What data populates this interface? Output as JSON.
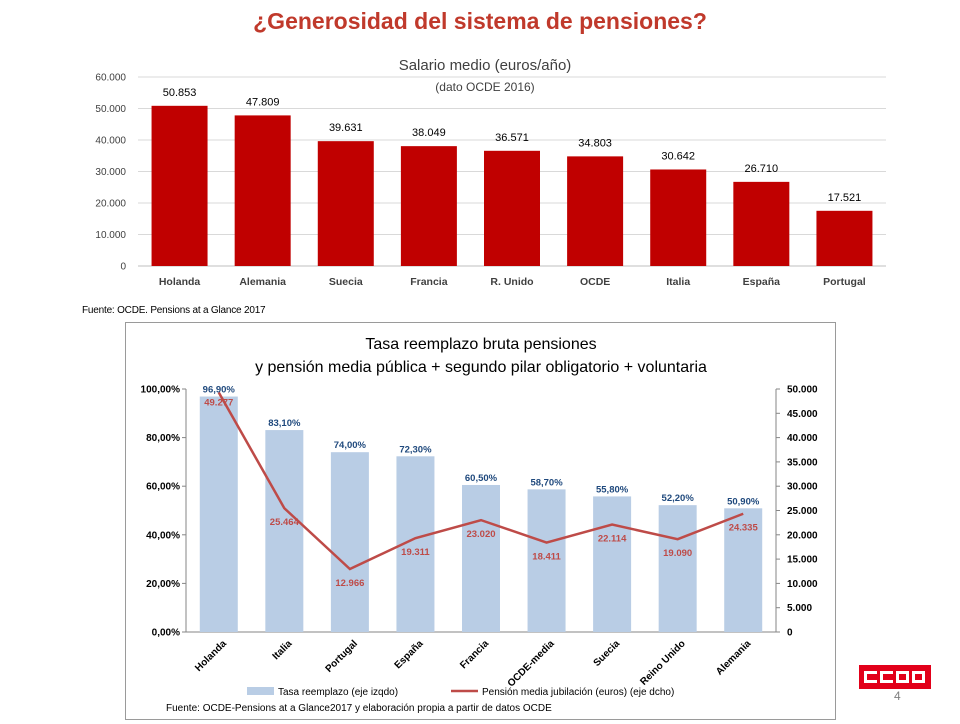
{
  "slide": {
    "title": "¿Generosidad del sistema de pensiones?",
    "page_number": "4",
    "logo_text": "CCOO"
  },
  "colors": {
    "title": "#c0392b",
    "bar1": "#c00000",
    "bar2": "#b9cde5",
    "line2": "#be4b48",
    "bar2_label": "#1f497d",
    "logo": "#e2001a"
  },
  "chart_data": [
    {
      "type": "bar",
      "title": "Salario medio (euros/año)",
      "subtitle": "(dato OCDE 2016)",
      "categories": [
        "Holanda",
        "Alemania",
        "Suecia",
        "Francia",
        "R. Unido",
        "OCDE",
        "Italia",
        "España",
        "Portugal"
      ],
      "values": [
        50853,
        47809,
        39631,
        38049,
        36571,
        34803,
        30642,
        26710,
        17521
      ],
      "value_labels": [
        "50.853",
        "47.809",
        "39.631",
        "38.049",
        "36.571",
        "34.803",
        "30.642",
        "26.710",
        "17.521"
      ],
      "ylim": [
        0,
        60000
      ],
      "yticks": [
        0,
        10000,
        20000,
        30000,
        40000,
        50000,
        60000
      ],
      "ytick_labels": [
        "0",
        "10.000",
        "20.000",
        "30.000",
        "40.000",
        "50.000",
        "60.000"
      ],
      "grid": true,
      "source": "Fuente: OCDE. Pensions at a Glance 2017"
    },
    {
      "type": "bar+line",
      "title_line1": "Tasa reemplazo bruta pensiones",
      "title_line2": "y pensión media pública + segundo pilar obligatorio +  voluntaria",
      "categories": [
        "Holanda",
        "Italia",
        "Portugal",
        "España",
        "Francia",
        "OCDE-media",
        "Suecia",
        "Reino Unido",
        "Alemania"
      ],
      "series": [
        {
          "name": "Tasa reemplazo (eje izqdo)",
          "kind": "bar",
          "axis": "left",
          "values": [
            96.9,
            83.1,
            74.0,
            72.3,
            60.5,
            58.7,
            55.8,
            52.2,
            50.9
          ],
          "labels": [
            "96,90%",
            "83,10%",
            "74,00%",
            "72,30%",
            "60,50%",
            "58,70%",
            "55,80%",
            "52,20%",
            "50,90%"
          ]
        },
        {
          "name": "Pensión media jubilación (euros) (eje dcho)",
          "kind": "line",
          "axis": "right",
          "values": [
            49277,
            25464,
            12966,
            19311,
            23020,
            18411,
            22114,
            19090,
            24335
          ],
          "labels": [
            "49.277",
            "25.464",
            "12.966",
            "19.311",
            "23.020",
            "18.411",
            "22.114",
            "19.090",
            "24.335"
          ]
        }
      ],
      "y_left": {
        "lim": [
          0,
          100
        ],
        "ticks": [
          0,
          20,
          40,
          60,
          80,
          100
        ],
        "tick_labels": [
          "0,00%",
          "20,00%",
          "40,00%",
          "60,00%",
          "80,00%",
          "100,00%"
        ]
      },
      "y_right": {
        "lim": [
          0,
          50000
        ],
        "ticks": [
          0,
          5000,
          10000,
          15000,
          20000,
          25000,
          30000,
          35000,
          40000,
          45000,
          50000
        ],
        "tick_labels": [
          "0",
          "5.000",
          "10.000",
          "15.000",
          "20.000",
          "25.000",
          "30.000",
          "35.000",
          "40.000",
          "45.000",
          "50.000"
        ]
      },
      "legend_position": "bottom",
      "source": "Fuente:  OCDE-Pensions at a Glance2017 y elaboración propia a partir de datos OCDE"
    }
  ]
}
